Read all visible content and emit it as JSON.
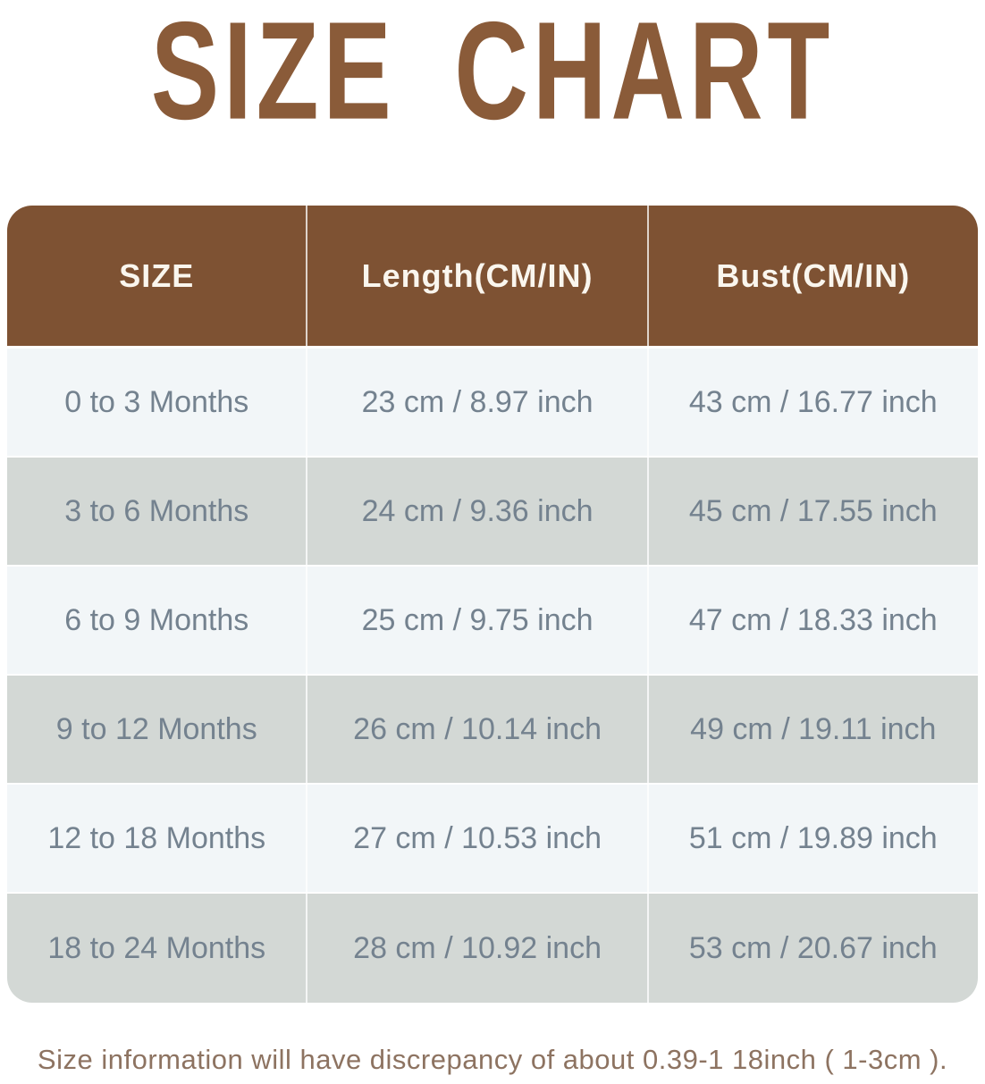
{
  "title": "SIZE CHART",
  "chart_data": {
    "type": "table",
    "title": "SIZE CHART",
    "columns": [
      "SIZE",
      "Length(CM/IN)",
      "Bust(CM/IN)"
    ],
    "rows": [
      [
        "0 to 3 Months",
        "23 cm / 8.97 inch",
        "43 cm / 16.77 inch"
      ],
      [
        "3 to 6 Months",
        "24 cm / 9.36 inch",
        "45 cm / 17.55 inch"
      ],
      [
        "6 to 9 Months",
        "25 cm / 9.75 inch",
        "47 cm / 18.33 inch"
      ],
      [
        "9 to 12 Months",
        "26 cm / 10.14 inch",
        "49 cm / 19.11 inch"
      ],
      [
        "12 to 18 Months",
        "27 cm / 10.53 inch",
        "51 cm / 19.89 inch"
      ],
      [
        "18 to 24 Months",
        "28 cm / 10.92 inch",
        "53 cm / 20.67 inch"
      ]
    ]
  },
  "footnote": "Size information will have discrepancy of about 0.39-1 18inch ( 1-3cm ).",
  "colors": {
    "title_brown": "#8a5b39",
    "header_background": "#7e5233",
    "header_text": "#faf6ee",
    "row_light": "#f2f6f8",
    "row_gray": "#d3d8d5",
    "body_text": "#74828f",
    "footnote_text": "#8d7361"
  }
}
